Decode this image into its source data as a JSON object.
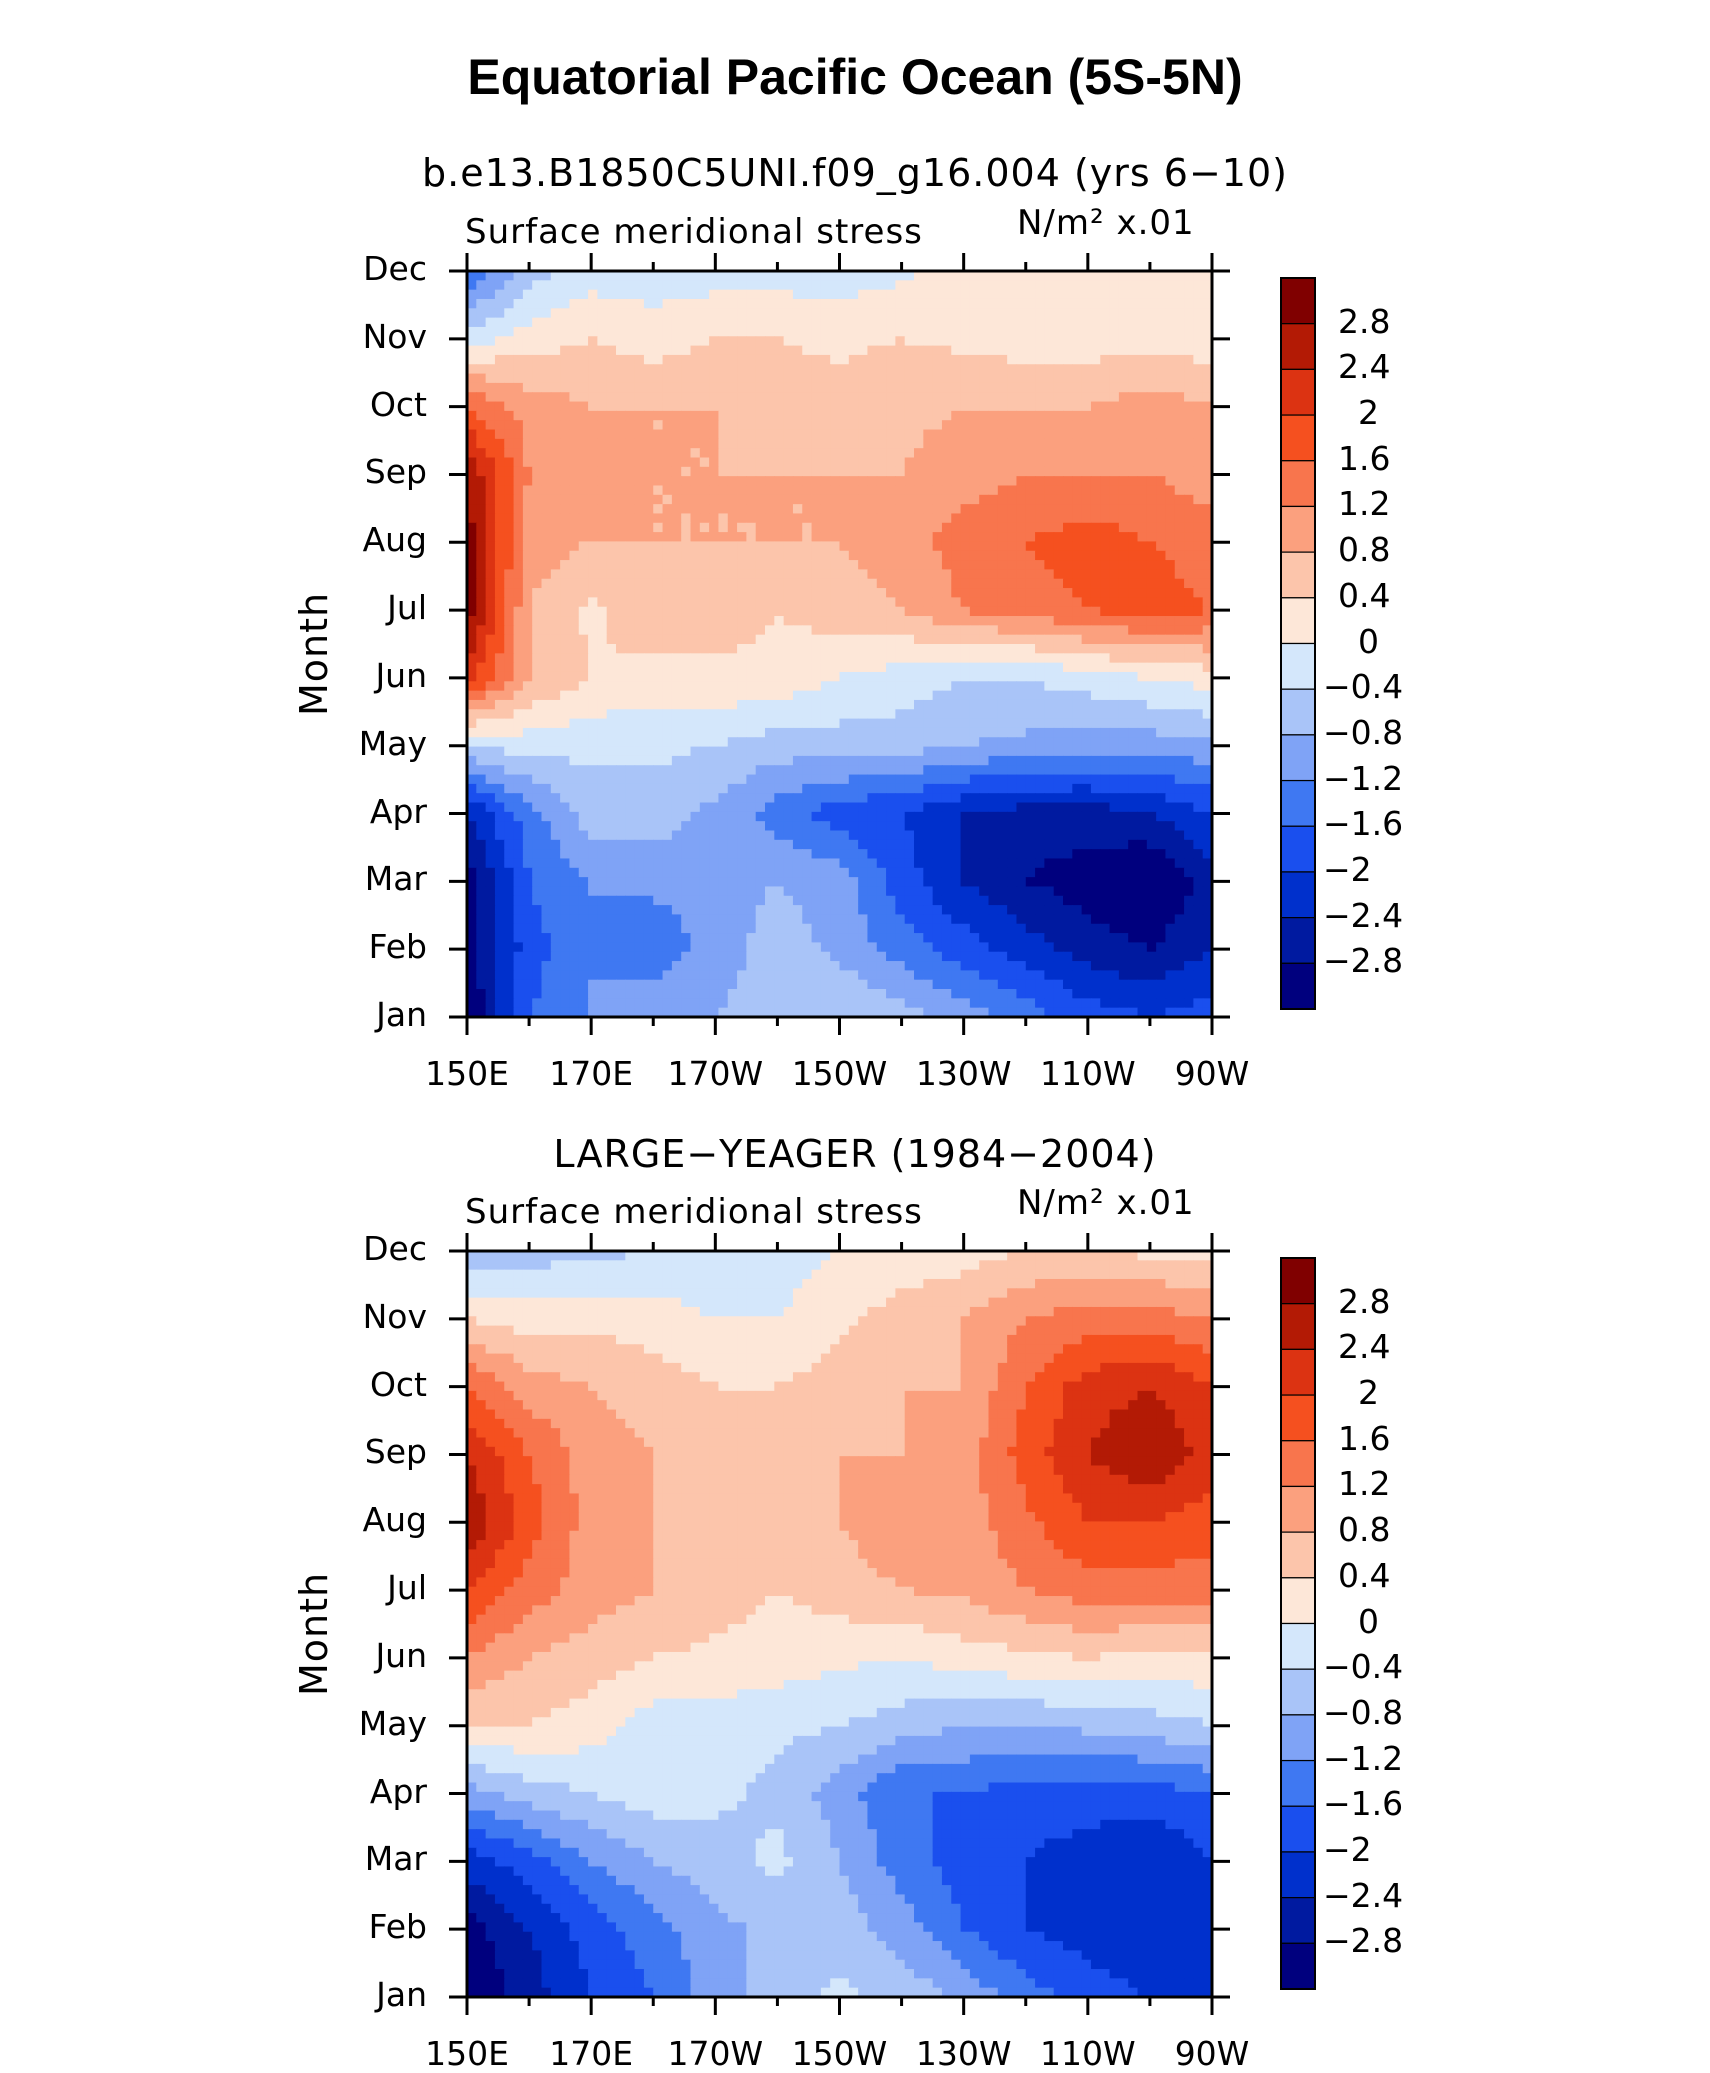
{
  "main_title": "Equatorial Pacific Ocean (5S-5N)",
  "colors": {
    "palette": [
      "#00007e",
      "#001aa0",
      "#0030cc",
      "#1a4fee",
      "#3f78f2",
      "#7fa3f6",
      "#a9c4f8",
      "#d4e7fb",
      "#fde7d8",
      "#fcc5ab",
      "#fba07e",
      "#f8754d",
      "#f5501f",
      "#dc3312",
      "#b31a05",
      "#800000"
    ],
    "frame": "#000000"
  },
  "chart_data": [
    {
      "type": "heatmap",
      "title": "b.e13.B1850C5UNI.f09_g16.004 (yrs 6−10)",
      "left_string": "Surface meridional stress",
      "right_string": "N/m² x.01",
      "ylabel": "Month",
      "xlabel": "",
      "x_tick_labels": [
        "150E",
        "170E",
        "170W",
        "150W",
        "130W",
        "110W",
        "90W"
      ],
      "x_longitudes": [
        150,
        160,
        170,
        180,
        190,
        200,
        210,
        220,
        230,
        240,
        250,
        260,
        270
      ],
      "y_tick_labels": [
        "Jan",
        "Feb",
        "Mar",
        "Apr",
        "May",
        "Jun",
        "Jul",
        "Aug",
        "Sep",
        "Oct",
        "Nov",
        "Dec"
      ],
      "colorbar_levels": [
        -3.0,
        -2.8,
        -2.4,
        -2.0,
        -1.6,
        -1.2,
        -0.8,
        -0.4,
        0,
        0.4,
        0.8,
        1.2,
        1.6,
        2.0,
        2.4,
        2.8
      ],
      "colorbar_labels": [
        "2.8",
        "2.4",
        "2",
        "1.6",
        "1.2",
        "0.8",
        "0.4",
        "0",
        "−0.4",
        "−0.8",
        "−1.2",
        "−1.6",
        "−2",
        "−2.4",
        "−2.8"
      ],
      "values": [
        [
          -3.2,
          -1.6,
          -1.2,
          -0.8,
          -0.8,
          -0.6,
          -0.4,
          -0.6,
          -1.0,
          -1.4,
          -1.8,
          -2.0,
          -1.8
        ],
        [
          -3.0,
          -1.8,
          -1.2,
          -1.5,
          -1.0,
          -0.6,
          -0.9,
          -1.4,
          -1.8,
          -2.2,
          -2.6,
          -2.8,
          -2.4
        ],
        [
          -3.0,
          -1.6,
          -1.2,
          -1.1,
          -1.0,
          -0.8,
          -1.0,
          -1.8,
          -2.4,
          -2.8,
          -3.0,
          -3.3,
          -2.6
        ],
        [
          -2.4,
          -1.4,
          -0.6,
          -0.6,
          -0.9,
          -1.4,
          -1.8,
          -2.0,
          -2.4,
          -2.6,
          -2.6,
          -2.4,
          -2.0
        ],
        [
          -0.4,
          -0.2,
          -0.3,
          -0.3,
          -0.4,
          -0.6,
          -0.6,
          -0.6,
          -0.8,
          -0.9,
          -1.0,
          -1.0,
          -0.9
        ],
        [
          2.2,
          0.8,
          0.4,
          0.2,
          0.3,
          0.3,
          0.0,
          -0.2,
          -0.4,
          -0.4,
          -0.2,
          0.0,
          0.2
        ],
        [
          3.0,
          0.8,
          0.3,
          0.8,
          0.6,
          0.4,
          0.6,
          0.8,
          1.2,
          1.4,
          1.6,
          1.8,
          1.6
        ],
        [
          3.0,
          1.0,
          0.8,
          0.8,
          0.8,
          0.8,
          0.8,
          1.0,
          1.4,
          1.6,
          1.8,
          1.6,
          1.4
        ],
        [
          2.8,
          1.2,
          1.0,
          0.8,
          0.8,
          0.8,
          0.8,
          0.8,
          1.0,
          1.2,
          1.2,
          1.2,
          1.0
        ],
        [
          1.6,
          1.0,
          0.8,
          0.8,
          0.8,
          0.6,
          0.6,
          0.7,
          0.8,
          0.8,
          0.8,
          1.0,
          0.8
        ],
        [
          -0.2,
          0.2,
          0.4,
          0.2,
          0.4,
          0.4,
          0.3,
          0.4,
          0.3,
          0.2,
          0.2,
          0.2,
          0.2
        ],
        [
          -1.6,
          -0.6,
          -0.2,
          -0.2,
          -0.2,
          -0.2,
          -0.2,
          -0.1,
          0.2,
          0.3,
          0.4,
          0.2,
          0.2
        ]
      ]
    },
    {
      "type": "heatmap",
      "title": "LARGE−YEAGER (1984−2004)",
      "left_string": "Surface meridional stress",
      "right_string": "N/m² x.01",
      "ylabel": "Month",
      "xlabel": "",
      "x_tick_labels": [
        "150E",
        "170E",
        "170W",
        "150W",
        "130W",
        "110W",
        "90W"
      ],
      "x_longitudes": [
        150,
        160,
        170,
        180,
        190,
        200,
        210,
        220,
        230,
        240,
        250,
        260,
        270
      ],
      "y_tick_labels": [
        "Jan",
        "Feb",
        "Mar",
        "Apr",
        "May",
        "Jun",
        "Jul",
        "Aug",
        "Sep",
        "Oct",
        "Nov",
        "Dec"
      ],
      "colorbar_levels": [
        -3.0,
        -2.8,
        -2.4,
        -2.0,
        -1.6,
        -1.2,
        -0.8,
        -0.4,
        0,
        0.4,
        0.8,
        1.2,
        1.6,
        2.0,
        2.4,
        2.8
      ],
      "colorbar_labels": [
        "2.8",
        "2.4",
        "2",
        "1.6",
        "1.2",
        "0.8",
        "0.4",
        "0",
        "−0.4",
        "−0.8",
        "−1.2",
        "−1.6",
        "−2",
        "−2.4",
        "−2.8"
      ],
      "values": [
        [
          -3.2,
          -2.6,
          -2.0,
          -1.6,
          -1.0,
          -0.6,
          -0.3,
          -0.5,
          -0.9,
          -1.4,
          -1.8,
          -2.0,
          -2.0
        ],
        [
          -3.0,
          -2.4,
          -1.8,
          -1.4,
          -0.9,
          -0.7,
          -0.6,
          -1.0,
          -1.6,
          -2.0,
          -2.2,
          -2.4,
          -2.2
        ],
        [
          -2.2,
          -1.8,
          -1.2,
          -0.8,
          -0.6,
          -0.3,
          -0.8,
          -1.4,
          -1.8,
          -2.0,
          -2.2,
          -2.4,
          -2.0
        ],
        [
          -1.0,
          -0.6,
          -0.4,
          -0.2,
          -0.3,
          -0.5,
          -1.0,
          -1.6,
          -1.6,
          -1.8,
          -1.8,
          -1.8,
          -1.6
        ],
        [
          0.4,
          0.4,
          0.2,
          -0.2,
          -0.2,
          -0.3,
          -0.4,
          -0.6,
          -0.8,
          -0.8,
          -0.7,
          -0.6,
          -0.4
        ],
        [
          1.2,
          0.8,
          0.6,
          0.4,
          0.3,
          0.2,
          0.1,
          0.0,
          0.2,
          0.3,
          0.4,
          0.3,
          0.3
        ],
        [
          2.0,
          1.4,
          1.0,
          0.8,
          0.6,
          0.4,
          0.6,
          0.8,
          0.9,
          1.2,
          1.4,
          1.4,
          1.4
        ],
        [
          2.8,
          1.8,
          1.0,
          0.8,
          0.6,
          0.6,
          0.8,
          1.1,
          1.0,
          1.5,
          2.0,
          2.0,
          1.8
        ],
        [
          2.4,
          1.6,
          1.0,
          0.8,
          0.6,
          0.8,
          0.8,
          0.8,
          1.0,
          1.8,
          2.4,
          2.8,
          2.2
        ],
        [
          1.6,
          1.0,
          0.8,
          0.6,
          0.4,
          0.4,
          0.6,
          0.8,
          0.8,
          1.6,
          2.2,
          2.4,
          2.0
        ],
        [
          0.4,
          0.2,
          0.3,
          0.2,
          0.0,
          0.0,
          0.3,
          0.6,
          0.8,
          1.2,
          1.4,
          1.4,
          1.2
        ],
        [
          -0.8,
          -0.6,
          -0.5,
          -0.4,
          -0.3,
          -0.2,
          0.0,
          0.1,
          0.2,
          0.4,
          0.4,
          0.3,
          0.2
        ]
      ]
    }
  ]
}
